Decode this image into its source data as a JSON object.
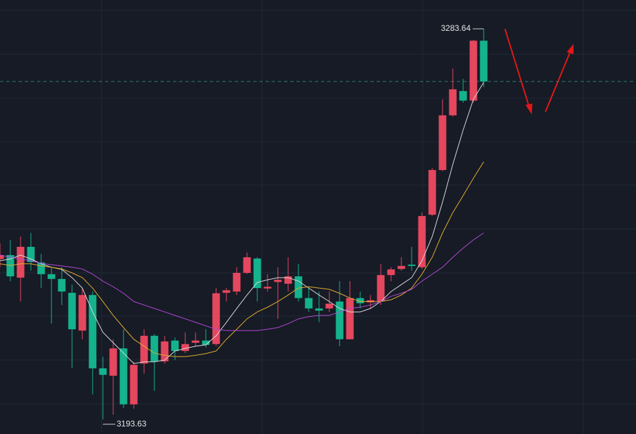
{
  "chart_data": {
    "type": "candlestick",
    "ylim": [
      3190.27,
      3290.28
    ],
    "up_color": "#e5475f",
    "down_color": "#14b38e",
    "open": [
      3230.6,
      3231.5,
      3226.3,
      3233.4,
      3229.8,
      3227.1,
      3226.0,
      3222.8,
      3214.1,
      3222.3,
      3205.4,
      3203.7,
      3210.0,
      3197.1,
      3206.5,
      3212.9,
      3207.0,
      3211.8,
      3209.4,
      3211.3,
      3211.8,
      3211.0,
      3222.8,
      3223.1,
      3227.4,
      3230.7,
      3223.8,
      3225.3,
      3224.9,
      3226.6,
      3221.6,
      3219.2,
      3219.2,
      3220.8,
      3212.1,
      3221.6,
      3220.6,
      3220.8,
      3226.9,
      3228.3,
      3229.3,
      3228.7,
      3240.8,
      3251.1,
      3263.7,
      3269.3,
      3267.1,
      3280.9
    ],
    "high": [
      3234.2,
      3235.0,
      3235.8,
      3236.6,
      3231.8,
      3228.7,
      3228.7,
      3224.7,
      3223.9,
      3223.1,
      3208.1,
      3212.1,
      3214.4,
      3206.9,
      3214.4,
      3213.3,
      3212.9,
      3212.5,
      3213.7,
      3213.7,
      3214.4,
      3223.9,
      3223.9,
      3228.7,
      3232.1,
      3231.0,
      3227.1,
      3228.7,
      3231.0,
      3229.5,
      3223.9,
      3223.1,
      3223.1,
      3225.5,
      3225.5,
      3223.1,
      3222.3,
      3229.5,
      3228.7,
      3231.0,
      3233.4,
      3241.3,
      3251.6,
      3267.4,
      3274.5,
      3272.1,
      3281.1,
      3283.64
    ],
    "low": [
      3228.7,
      3225.5,
      3220.8,
      3227.9,
      3223.9,
      3215.7,
      3220.0,
      3205.4,
      3212.1,
      3199.4,
      3193.63,
      3194.7,
      3196.3,
      3196.1,
      3204.2,
      3200.2,
      3206.5,
      3207.3,
      3208.9,
      3210.5,
      3210.2,
      3210.5,
      3220.8,
      3222.3,
      3227.1,
      3220.8,
      3223.1,
      3216.8,
      3223.1,
      3220.8,
      3218.4,
      3216.0,
      3218.4,
      3210.5,
      3212.1,
      3219.2,
      3219.2,
      3220.0,
      3225.5,
      3227.9,
      3227.9,
      3228.3,
      3240.5,
      3250.8,
      3263.4,
      3266.6,
      3266.6,
      3270.2
    ],
    "close": [
      3231.5,
      3226.6,
      3233.4,
      3229.9,
      3227.1,
      3226.0,
      3223.1,
      3214.4,
      3222.3,
      3205.4,
      3203.9,
      3210.0,
      3197.1,
      3206.2,
      3212.9,
      3207.0,
      3211.6,
      3209.4,
      3211.0,
      3211.8,
      3210.8,
      3222.7,
      3223.4,
      3227.4,
      3231.0,
      3223.9,
      3224.2,
      3225.8,
      3226.6,
      3221.6,
      3219.2,
      3218.7,
      3220.3,
      3212.1,
      3221.6,
      3220.4,
      3221.1,
      3226.9,
      3228.2,
      3229.0,
      3229.0,
      3240.5,
      3251.1,
      3263.7,
      3269.7,
      3267.1,
      3280.9,
      3271.5
    ],
    "lines": [
      {
        "color": "#d9d9d9",
        "values": [
          3230.2,
          3230.6,
          3231.5,
          3230.6,
          3229.5,
          3228.7,
          3228.2,
          3226.3,
          3223.9,
          3218.4,
          3213.7,
          3211.3,
          3208.9,
          3206.5,
          3206.9,
          3206.9,
          3207.3,
          3209.4,
          3210.0,
          3210.5,
          3210.8,
          3212.9,
          3216.0,
          3219.2,
          3222.3,
          3225.2,
          3225.8,
          3226.3,
          3226.3,
          3225.5,
          3223.9,
          3222.3,
          3220.8,
          3219.2,
          3218.4,
          3218.4,
          3219.2,
          3220.8,
          3223.1,
          3224.7,
          3226.3,
          3230.2,
          3235.8,
          3243.7,
          3252.4,
          3260.3,
          3267.4,
          3271.3
        ]
      },
      {
        "color": "#e2ac2c",
        "values": [
          3229.5,
          3229.1,
          3229.5,
          3229.5,
          3229.0,
          3228.7,
          3228.3,
          3227.4,
          3226.3,
          3223.9,
          3220.8,
          3217.6,
          3214.8,
          3212.1,
          3210.5,
          3208.9,
          3208.4,
          3208.1,
          3208.1,
          3208.4,
          3208.8,
          3209.4,
          3212.1,
          3214.4,
          3216.8,
          3218.4,
          3219.5,
          3220.8,
          3222.3,
          3223.9,
          3224.2,
          3223.9,
          3223.6,
          3222.7,
          3221.6,
          3220.8,
          3220.8,
          3220.8,
          3221.2,
          3222.3,
          3223.9,
          3227.1,
          3231.0,
          3236.6,
          3241.3,
          3245.2,
          3249.2,
          3253.0
        ]
      },
      {
        "color": "#b548d6",
        "values": [
          3231.5,
          3231.0,
          3230.6,
          3230.2,
          3229.6,
          3229.3,
          3229.0,
          3228.7,
          3228.3,
          3227.1,
          3225.5,
          3224.2,
          3222.7,
          3220.8,
          3220.0,
          3219.2,
          3218.4,
          3217.6,
          3216.8,
          3216.0,
          3215.2,
          3214.4,
          3214.1,
          3214.1,
          3214.1,
          3214.1,
          3214.4,
          3214.8,
          3215.7,
          3216.8,
          3217.3,
          3217.6,
          3217.6,
          3218.4,
          3219.2,
          3219.5,
          3220.0,
          3220.8,
          3222.0,
          3222.7,
          3223.6,
          3225.5,
          3227.1,
          3228.7,
          3231.0,
          3233.1,
          3235.0,
          3236.6
        ]
      }
    ]
  }
}
